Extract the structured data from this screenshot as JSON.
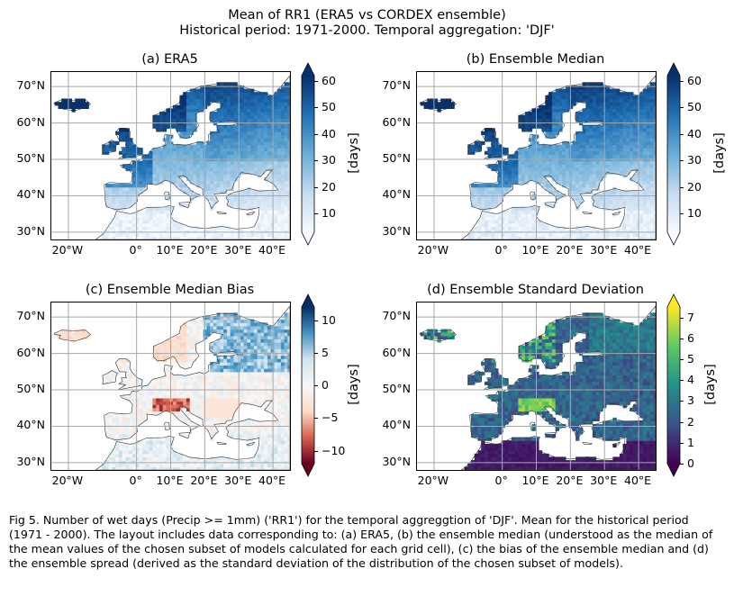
{
  "figure": {
    "title_line1": "Mean of RR1 (ERA5 vs CORDEX ensemble)",
    "title_line2": "Historical period: 1971-2000. Temporal aggregation: 'DJF'",
    "caption": "Fig 5. Number of wet days (Precip >= 1mm) ('RR1') for the temporal aggreggtion of 'DJF'. Mean for the historical period (1971 - 2000). The layout includes data corresponding to: (a) ERA5, (b) the ensemble median (understood as the median of the mean values of the chosen subset of models calculated for each grid cell), (c) the bias of the ensemble median and (d) the ensemble spread (derived as the standard deviation of the distribution of the chosen subset of models)."
  },
  "map_axes": {
    "lat_ticks": [
      "70°N",
      "60°N",
      "50°N",
      "40°N",
      "30°N"
    ],
    "lon_ticks": [
      "20°W",
      "0°",
      "10°E",
      "20°E",
      "30°E",
      "40°E"
    ],
    "extent_lon": [
      -25,
      45
    ],
    "extent_lat": [
      28,
      74
    ],
    "grid": true
  },
  "panels": [
    {
      "title": "(a) ERA5",
      "colormap": "Blues",
      "colors": [
        "#f7fbff",
        "#c6dbef",
        "#6baed6",
        "#2171b5",
        "#08306b"
      ],
      "colorbar": {
        "label": "[days]",
        "range": [
          3,
          62
        ],
        "ticks": [
          "60",
          "50",
          "40",
          "30",
          "20",
          "10"
        ],
        "tick_values": [
          60,
          50,
          40,
          30,
          20,
          10
        ],
        "extend": "both"
      }
    },
    {
      "title": "(b) Ensemble Median",
      "colormap": "Blues",
      "colors": [
        "#f7fbff",
        "#c6dbef",
        "#6baed6",
        "#2171b5",
        "#08306b"
      ],
      "colorbar": {
        "label": "[days]",
        "range": [
          3,
          62
        ],
        "ticks": [
          "60",
          "50",
          "40",
          "30",
          "20",
          "10"
        ],
        "tick_values": [
          60,
          50,
          40,
          30,
          20,
          10
        ],
        "extend": "both"
      }
    },
    {
      "title": "(c) Ensemble Median Bias",
      "colormap": "RdBu",
      "colors": [
        "#67001f",
        "#d6604d",
        "#fddbc7",
        "#f7f7f7",
        "#d1e5f0",
        "#4393c3",
        "#053061"
      ],
      "colorbar": {
        "label": "[days]",
        "range": [
          -12,
          12
        ],
        "ticks": [
          "10",
          "5",
          "0",
          "−5",
          "−10"
        ],
        "tick_values": [
          10,
          5,
          0,
          -5,
          -10
        ],
        "extend": "both"
      }
    },
    {
      "title": "(d) Ensemble Standard Deviation",
      "colormap": "viridis",
      "colors": [
        "#440154",
        "#3b528b",
        "#21918c",
        "#5ec962",
        "#fde725"
      ],
      "colorbar": {
        "label": "[days]",
        "range": [
          0,
          7.5
        ],
        "ticks": [
          "7",
          "6",
          "5",
          "4",
          "3",
          "2",
          "1",
          "0"
        ],
        "tick_values": [
          7,
          6,
          5,
          4,
          3,
          2,
          1,
          0
        ],
        "extend": "both"
      }
    }
  ]
}
